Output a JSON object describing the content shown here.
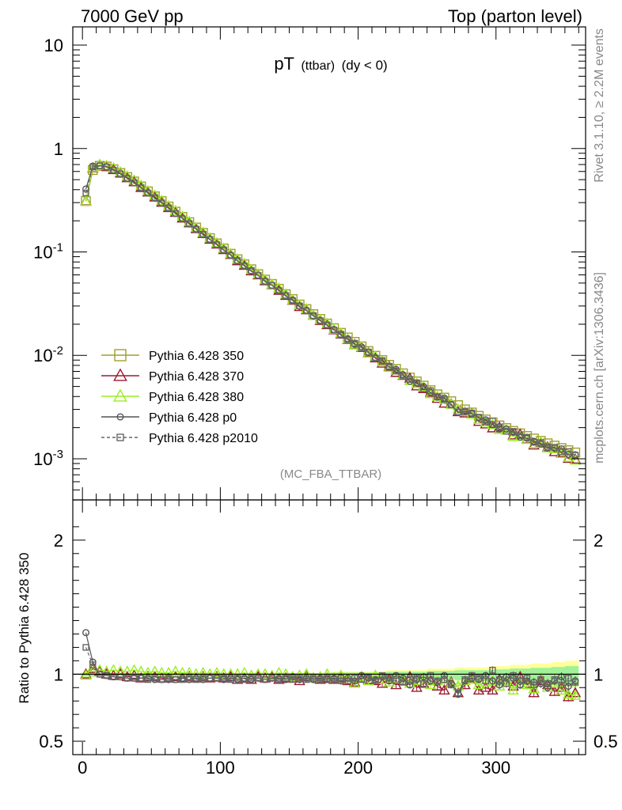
{
  "header": {
    "left": "7000 GeV pp",
    "right": "Top (parton level)"
  },
  "side_labels": {
    "rivet": "Rivet 3.1.10, ≥ 2.2M events",
    "mcplots": "mcplots.cern.ch [arXiv:1306.3436]"
  },
  "chart_data": [
    {
      "type": "line",
      "title_main": "pT",
      "title_sub": "(ttbar)",
      "title_cond": "(dy < 0)",
      "watermark": "(MC_FBA_TTBAR)",
      "ylog": true,
      "ylim": [
        0.0004,
        15
      ],
      "xlim": [
        -7,
        365
      ],
      "x_ticks": [
        0,
        100,
        200,
        300
      ],
      "y_tick_labels": [
        {
          "base": "10",
          "exp": "-3",
          "value": 0.001
        },
        {
          "base": "10",
          "exp": "-2",
          "value": 0.01
        },
        {
          "base": "10",
          "exp": "-1",
          "value": 0.1
        },
        {
          "base": "1",
          "exp": "",
          "value": 1
        },
        {
          "base": "10",
          "exp": "",
          "value": 10
        }
      ],
      "x_points": [
        2.5,
        7.5,
        12.5,
        17.5,
        22.5,
        27.5,
        32.5,
        37.5,
        42.5,
        47.5,
        52.5,
        57.5,
        62.5,
        67.5,
        72.5,
        77.5,
        82.5,
        87.5,
        92.5,
        97.5,
        102.5,
        107.5,
        112.5,
        117.5,
        122.5,
        127.5,
        132.5,
        137.5,
        142.5,
        147.5,
        152.5,
        157.5,
        162.5,
        167.5,
        172.5,
        177.5,
        182.5,
        187.5,
        192.5,
        197.5,
        202.5,
        207.5,
        212.5,
        217.5,
        222.5,
        227.5,
        232.5,
        237.5,
        242.5,
        247.5,
        252.5,
        257.5,
        262.5,
        267.5,
        272.5,
        277.5,
        282.5,
        287.5,
        292.5,
        297.5,
        302.5,
        307.5,
        312.5,
        317.5,
        322.5,
        327.5,
        332.5,
        337.5,
        342.5,
        347.5,
        352.5,
        357.5
      ],
      "reference": [
        0.31,
        0.62,
        0.68,
        0.67,
        0.63,
        0.58,
        0.53,
        0.48,
        0.43,
        0.385,
        0.345,
        0.31,
        0.275,
        0.245,
        0.218,
        0.194,
        0.172,
        0.153,
        0.136,
        0.121,
        0.108,
        0.096,
        0.085,
        0.076,
        0.068,
        0.061,
        0.054,
        0.049,
        0.044,
        0.039,
        0.035,
        0.031,
        0.028,
        0.025,
        0.0225,
        0.0203,
        0.0183,
        0.0165,
        0.0149,
        0.0135,
        0.0122,
        0.011,
        0.0099,
        0.009,
        0.0081,
        0.0074,
        0.0067,
        0.0061,
        0.0056,
        0.0051,
        0.0046,
        0.0042,
        0.0039,
        0.0036,
        0.0033,
        0.003,
        0.0028,
        0.0026,
        0.0024,
        0.00225,
        0.0021,
        0.00198,
        0.00186,
        0.00176,
        0.00166,
        0.00157,
        0.00149,
        0.00141,
        0.00134,
        0.00127,
        0.00121,
        0.00115
      ],
      "series": [
        {
          "name": "Pythia 6.428 350",
          "color": "#a0a030",
          "marker": "square",
          "dash": false
        },
        {
          "name": "Pythia 6.428 370",
          "color": "#9b1b30",
          "marker": "triangle",
          "dash": false
        },
        {
          "name": "Pythia 6.428 380",
          "color": "#99ee22",
          "marker": "triangle",
          "dash": false
        },
        {
          "name": "Pythia 6.428 p0",
          "color": "#555555",
          "marker": "circle",
          "dash": false
        },
        {
          "name": "Pythia 6.428 p2010",
          "color": "#666666",
          "marker": "square",
          "dash": true
        }
      ]
    },
    {
      "type": "line",
      "ylabel": "Ratio to Pythia 6.428 350",
      "ylim": [
        0.4,
        2.3
      ],
      "y_ticks": [
        0.5,
        1,
        2
      ],
      "y_tick_labels": [
        "0.5",
        "1",
        "2"
      ],
      "ratios": {
        "Pythia 6.428 350": [
          1.0,
          1.0,
          1.0,
          1.0,
          1.0,
          1.0,
          1.0,
          1.0,
          1.0,
          1.0,
          1.0,
          1.0,
          1.0,
          1.0,
          1.0,
          1.0,
          1.0,
          1.0,
          1.0,
          1.0,
          1.0,
          1.0,
          1.0,
          1.0,
          1.0,
          1.0,
          1.0,
          1.0,
          1.0,
          1.0,
          1.0,
          1.0,
          1.0,
          1.0,
          1.0,
          1.0,
          1.0,
          1.0,
          1.0,
          1.0,
          1.0,
          1.0,
          1.0,
          1.0,
          1.0,
          1.0,
          1.0,
          1.0,
          1.0,
          1.0,
          1.0,
          1.0,
          1.0,
          1.0,
          1.0,
          1.0,
          1.0,
          1.0,
          1.0,
          1.0,
          1.0,
          1.0,
          1.0,
          1.0,
          1.0,
          1.0,
          1.0,
          1.0,
          1.0,
          1.0,
          1.0,
          1.0
        ],
        "Pythia 6.428 370": [
          1.0,
          1.04,
          1.02,
          1.0,
          0.99,
          1.0,
          0.98,
          0.99,
          0.97,
          0.98,
          0.98,
          0.97,
          0.97,
          0.98,
          0.97,
          0.98,
          0.97,
          0.98,
          0.97,
          0.98,
          0.97,
          0.98,
          0.96,
          0.97,
          0.96,
          0.98,
          0.97,
          0.98,
          0.96,
          0.97,
          0.97,
          0.95,
          0.98,
          0.97,
          0.96,
          0.97,
          0.96,
          0.97,
          0.95,
          0.94,
          0.97,
          0.96,
          0.95,
          0.93,
          0.96,
          0.92,
          0.95,
          0.98,
          0.9,
          0.93,
          0.95,
          0.91,
          0.88,
          0.94,
          0.86,
          0.92,
          0.97,
          0.88,
          0.9,
          0.88,
          0.96,
          0.95,
          0.91,
          0.98,
          0.93,
          0.86,
          0.95,
          0.92,
          0.87,
          0.9,
          0.83,
          0.86
        ],
        "Pythia 6.428 380": [
          0.99,
          1.05,
          1.03,
          1.02,
          1.03,
          1.02,
          1.02,
          1.03,
          1.02,
          1.01,
          1.02,
          1.01,
          1.01,
          1.02,
          1.01,
          1.01,
          1.0,
          1.01,
          1.0,
          1.01,
          1.0,
          1.0,
          1.0,
          1.01,
          0.99,
          1.0,
          1.0,
          0.99,
          1.01,
          1.0,
          0.98,
          0.99,
          1.0,
          0.97,
          0.98,
          1.0,
          0.97,
          0.99,
          0.96,
          0.93,
          0.98,
          0.95,
          0.99,
          0.96,
          0.94,
          0.97,
          0.96,
          0.93,
          0.95,
          0.97,
          0.92,
          0.95,
          0.96,
          0.93,
          0.91,
          0.95,
          0.96,
          0.92,
          0.94,
          0.95,
          0.91,
          0.95,
          0.88,
          0.93,
          0.92,
          0.89,
          0.97,
          0.9,
          0.93,
          0.88,
          0.85,
          0.84
        ],
        "Pythia 6.428 p0": [
          1.31,
          1.09,
          1.0,
          0.99,
          0.98,
          0.98,
          0.97,
          0.97,
          0.97,
          0.97,
          0.96,
          0.96,
          0.96,
          0.96,
          0.97,
          0.96,
          0.97,
          0.96,
          0.97,
          0.97,
          0.96,
          0.97,
          0.96,
          0.97,
          0.96,
          0.97,
          0.96,
          0.97,
          0.97,
          0.96,
          0.98,
          0.96,
          0.97,
          0.96,
          0.97,
          0.96,
          0.97,
          0.95,
          0.97,
          0.95,
          0.99,
          0.97,
          0.96,
          0.98,
          0.95,
          0.99,
          0.97,
          0.92,
          0.96,
          0.98,
          0.95,
          0.94,
          0.99,
          0.93,
          0.85,
          0.95,
          0.97,
          0.96,
          0.99,
          0.95,
          0.92,
          0.98,
          0.97,
          0.92,
          0.95,
          0.94,
          0.93,
          0.9,
          0.95,
          0.98,
          0.91,
          0.95
        ],
        "Pythia 6.428 p2010": [
          1.2,
          1.07,
          1.0,
          0.99,
          0.98,
          0.98,
          0.97,
          0.97,
          0.97,
          0.96,
          0.97,
          0.96,
          0.97,
          0.96,
          0.96,
          0.97,
          0.96,
          0.97,
          0.97,
          0.97,
          0.97,
          0.96,
          0.97,
          0.96,
          0.97,
          0.97,
          0.96,
          0.97,
          0.96,
          0.97,
          0.96,
          0.97,
          0.96,
          0.97,
          0.96,
          0.97,
          0.96,
          0.97,
          0.95,
          0.97,
          0.96,
          0.98,
          0.95,
          0.99,
          0.97,
          0.95,
          0.94,
          0.96,
          0.97,
          0.93,
          0.99,
          0.95,
          0.96,
          0.92,
          0.86,
          0.96,
          0.99,
          0.97,
          0.95,
          1.03,
          0.96,
          0.93,
          0.99,
          0.95,
          0.97,
          0.92,
          0.96,
          0.93,
          0.96,
          0.92,
          0.97,
          0.94
        ]
      },
      "band_upper": [
        1.02,
        1.02,
        1.01,
        1.01,
        1.01,
        1.01,
        1.01,
        1.01,
        1.01,
        1.01,
        1.01,
        1.01,
        1.01,
        1.01,
        1.01,
        1.01,
        1.01,
        1.01,
        1.01,
        1.01,
        1.01,
        1.01,
        1.01,
        1.01,
        1.01,
        1.01,
        1.01,
        1.01,
        1.01,
        1.01,
        1.01,
        1.01,
        1.01,
        1.01,
        1.01,
        1.01,
        1.02,
        1.02,
        1.02,
        1.02,
        1.02,
        1.02,
        1.02,
        1.02,
        1.03,
        1.03,
        1.03,
        1.03,
        1.03,
        1.03,
        1.04,
        1.04,
        1.04,
        1.04,
        1.05,
        1.05,
        1.05,
        1.05,
        1.05,
        1.06,
        1.06,
        1.06,
        1.07,
        1.07,
        1.07,
        1.08,
        1.08,
        1.08,
        1.09,
        1.09,
        1.1,
        1.1
      ]
    }
  ]
}
